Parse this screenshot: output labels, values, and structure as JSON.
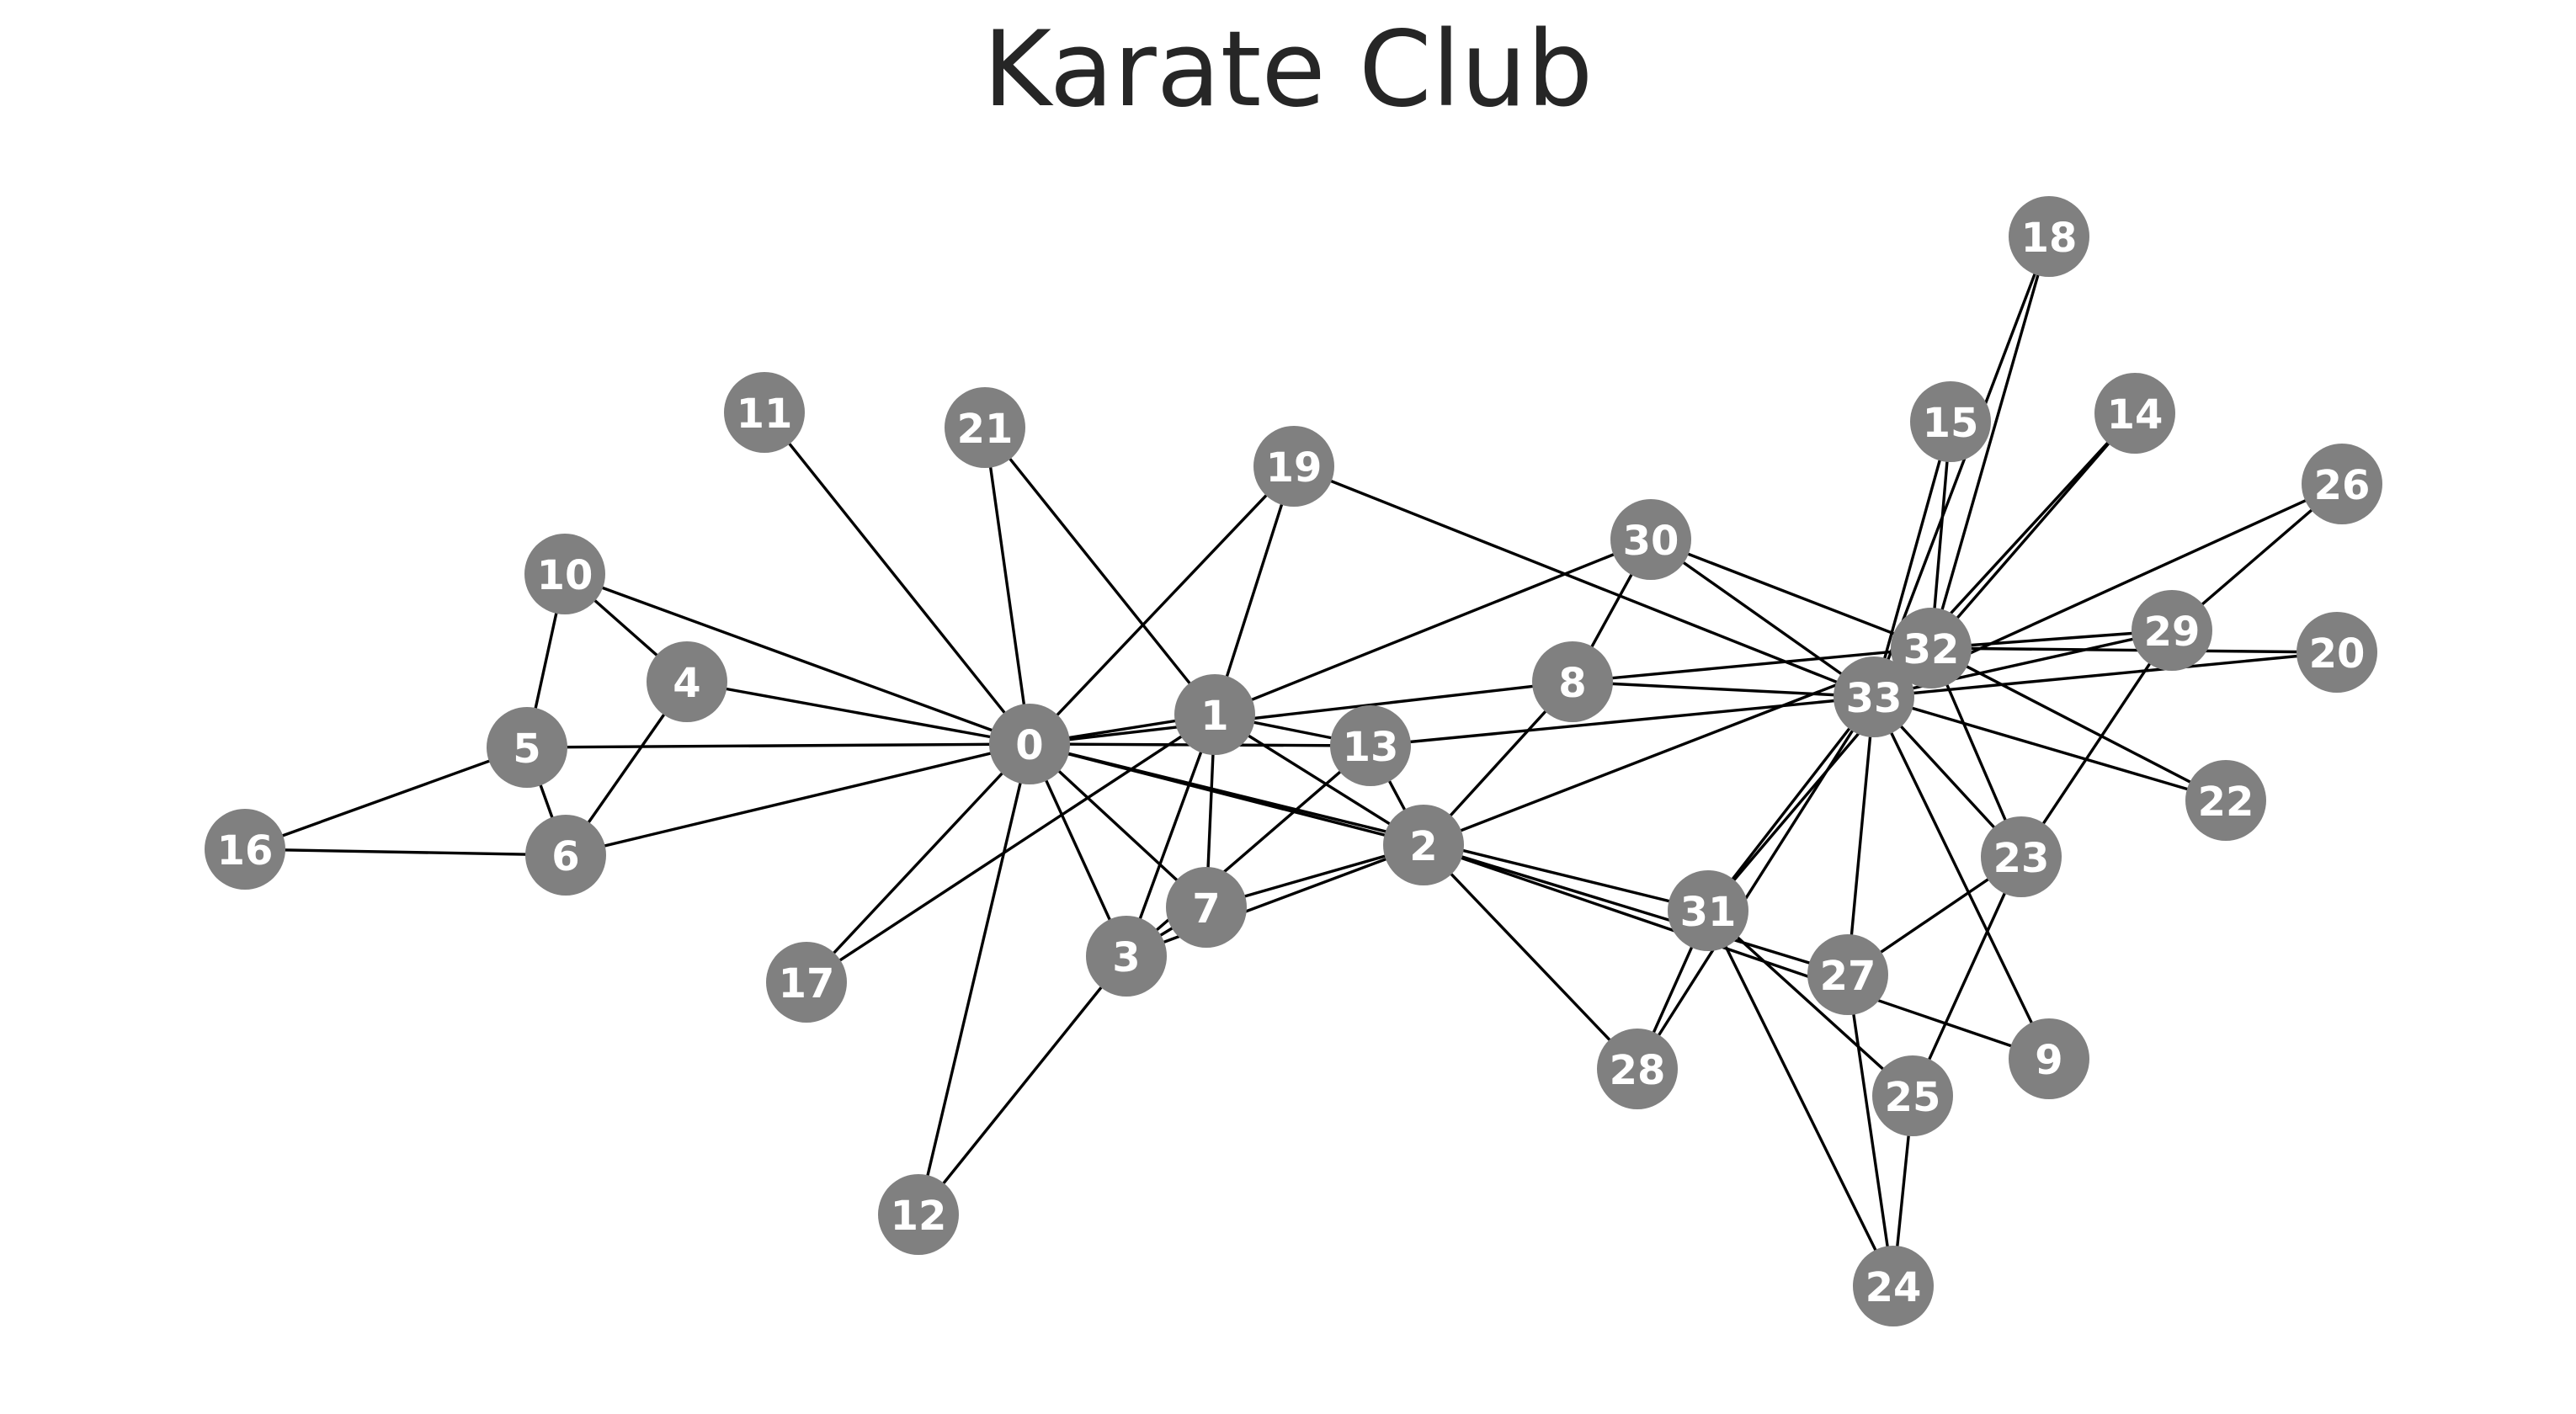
{
  "title": "Karate Club",
  "colors": {
    "node": "#808080",
    "edge": "#000000",
    "label": "#ffffff",
    "title": "#262626"
  },
  "graph": {
    "nodes": [
      {
        "id": 0,
        "label": "0"
      },
      {
        "id": 1,
        "label": "1"
      },
      {
        "id": 2,
        "label": "2"
      },
      {
        "id": 3,
        "label": "3"
      },
      {
        "id": 4,
        "label": "4"
      },
      {
        "id": 5,
        "label": "5"
      },
      {
        "id": 6,
        "label": "6"
      },
      {
        "id": 7,
        "label": "7"
      },
      {
        "id": 8,
        "label": "8"
      },
      {
        "id": 9,
        "label": "9"
      },
      {
        "id": 10,
        "label": "10"
      },
      {
        "id": 11,
        "label": "11"
      },
      {
        "id": 12,
        "label": "12"
      },
      {
        "id": 13,
        "label": "13"
      },
      {
        "id": 14,
        "label": "14"
      },
      {
        "id": 15,
        "label": "15"
      },
      {
        "id": 16,
        "label": "16"
      },
      {
        "id": 17,
        "label": "17"
      },
      {
        "id": 18,
        "label": "18"
      },
      {
        "id": 19,
        "label": "19"
      },
      {
        "id": 20,
        "label": "20"
      },
      {
        "id": 21,
        "label": "21"
      },
      {
        "id": 22,
        "label": "22"
      },
      {
        "id": 23,
        "label": "23"
      },
      {
        "id": 24,
        "label": "24"
      },
      {
        "id": 25,
        "label": "25"
      },
      {
        "id": 26,
        "label": "26"
      },
      {
        "id": 27,
        "label": "27"
      },
      {
        "id": 28,
        "label": "28"
      },
      {
        "id": 29,
        "label": "29"
      },
      {
        "id": 30,
        "label": "30"
      },
      {
        "id": 31,
        "label": "31"
      },
      {
        "id": 32,
        "label": "32"
      },
      {
        "id": 33,
        "label": "33"
      }
    ],
    "edges": [
      [
        0,
        1
      ],
      [
        0,
        2
      ],
      [
        0,
        3
      ],
      [
        0,
        4
      ],
      [
        0,
        5
      ],
      [
        0,
        6
      ],
      [
        0,
        7
      ],
      [
        0,
        8
      ],
      [
        0,
        10
      ],
      [
        0,
        11
      ],
      [
        0,
        12
      ],
      [
        0,
        13
      ],
      [
        0,
        17
      ],
      [
        0,
        19
      ],
      [
        0,
        21
      ],
      [
        0,
        31
      ],
      [
        1,
        2
      ],
      [
        1,
        3
      ],
      [
        1,
        7
      ],
      [
        1,
        13
      ],
      [
        1,
        17
      ],
      [
        1,
        19
      ],
      [
        1,
        21
      ],
      [
        1,
        30
      ],
      [
        2,
        3
      ],
      [
        2,
        7
      ],
      [
        2,
        8
      ],
      [
        2,
        9
      ],
      [
        2,
        13
      ],
      [
        2,
        27
      ],
      [
        2,
        28
      ],
      [
        2,
        32
      ],
      [
        3,
        7
      ],
      [
        3,
        12
      ],
      [
        3,
        13
      ],
      [
        4,
        6
      ],
      [
        4,
        10
      ],
      [
        5,
        6
      ],
      [
        5,
        10
      ],
      [
        5,
        16
      ],
      [
        6,
        16
      ],
      [
        8,
        30
      ],
      [
        8,
        32
      ],
      [
        8,
        33
      ],
      [
        9,
        33
      ],
      [
        13,
        33
      ],
      [
        14,
        32
      ],
      [
        14,
        33
      ],
      [
        15,
        32
      ],
      [
        15,
        33
      ],
      [
        18,
        32
      ],
      [
        18,
        33
      ],
      [
        19,
        33
      ],
      [
        20,
        32
      ],
      [
        20,
        33
      ],
      [
        22,
        32
      ],
      [
        22,
        33
      ],
      [
        23,
        25
      ],
      [
        23,
        27
      ],
      [
        23,
        29
      ],
      [
        23,
        32
      ],
      [
        23,
        33
      ],
      [
        24,
        25
      ],
      [
        24,
        27
      ],
      [
        24,
        31
      ],
      [
        25,
        31
      ],
      [
        26,
        29
      ],
      [
        26,
        33
      ],
      [
        27,
        33
      ],
      [
        28,
        31
      ],
      [
        28,
        33
      ],
      [
        29,
        32
      ],
      [
        29,
        33
      ],
      [
        30,
        32
      ],
      [
        30,
        33
      ],
      [
        31,
        32
      ],
      [
        31,
        33
      ],
      [
        32,
        33
      ]
    ]
  }
}
